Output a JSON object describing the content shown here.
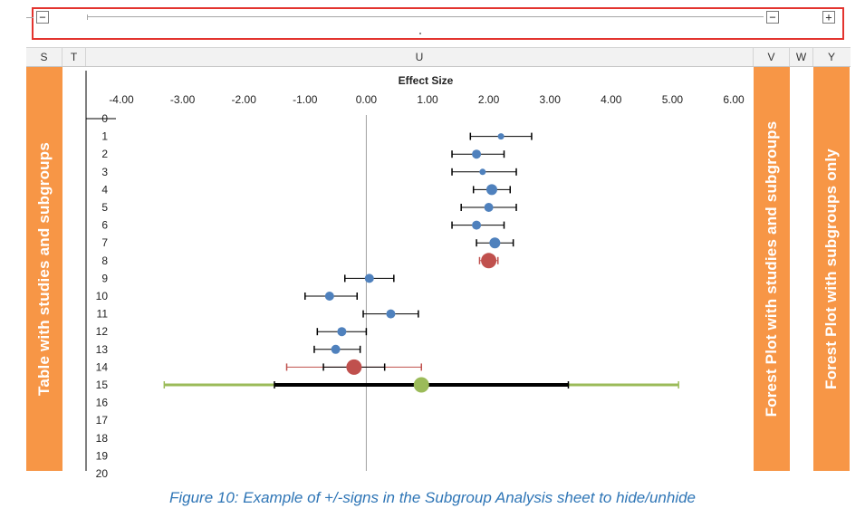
{
  "group_bar": {
    "collapse_left_label": "−",
    "collapse_right_label": "−",
    "expand_label": "+"
  },
  "column_headers": [
    "S",
    "T",
    "U",
    "V",
    "W",
    "Y"
  ],
  "left_panel_label": "Table with studies and subgroups",
  "middle_panel_label": "Forest Plot with studies and subgroups",
  "right_panel_label": "Forest Plot with subgroups only",
  "chart_data": {
    "type": "scatter",
    "title": "Effect Size",
    "x_ticks": [
      "-4.00",
      "-3.00",
      "-2.00",
      "-1.00",
      "0.00",
      "1.00",
      "2.00",
      "3.00",
      "4.00",
      "5.00",
      "6.00"
    ],
    "xlim": [
      -4,
      6
    ],
    "ylim": [
      0,
      20
    ],
    "row_labels": [
      "0",
      "1",
      "2",
      "3",
      "4",
      "5",
      "6",
      "7",
      "8",
      "9",
      "10",
      "11",
      "12",
      "13",
      "14",
      "15",
      "16",
      "17",
      "18",
      "19",
      "20"
    ],
    "reference_line_x": 0,
    "colors": {
      "study": "#4f81bd",
      "subgroup": "#c0504d",
      "overall": "#9bbb59",
      "whisker": "#000000",
      "subgroup_whisker": "#c0504d",
      "overall_outer": "#9bbb59"
    },
    "studies": [
      {
        "row": 1,
        "x": 2.2,
        "lo": 1.7,
        "hi": 2.7,
        "size": "small"
      },
      {
        "row": 2,
        "x": 1.8,
        "lo": 1.4,
        "hi": 2.25,
        "size": "medium"
      },
      {
        "row": 3,
        "x": 1.9,
        "lo": 1.4,
        "hi": 2.45,
        "size": "small"
      },
      {
        "row": 4,
        "x": 2.05,
        "lo": 1.75,
        "hi": 2.35,
        "size": "large"
      },
      {
        "row": 5,
        "x": 2.0,
        "lo": 1.55,
        "hi": 2.45,
        "size": "medium"
      },
      {
        "row": 6,
        "x": 1.8,
        "lo": 1.4,
        "hi": 2.25,
        "size": "medium"
      },
      {
        "row": 7,
        "x": 2.1,
        "lo": 1.8,
        "hi": 2.4,
        "size": "large"
      },
      {
        "row": 9,
        "x": 0.05,
        "lo": -0.35,
        "hi": 0.45,
        "size": "medium"
      },
      {
        "row": 10,
        "x": -0.6,
        "lo": -1.0,
        "hi": -0.15,
        "size": "medium"
      },
      {
        "row": 11,
        "x": 0.4,
        "lo": -0.05,
        "hi": 0.85,
        "size": "medium"
      },
      {
        "row": 12,
        "x": -0.4,
        "lo": -0.8,
        "hi": 0.0,
        "size": "medium"
      },
      {
        "row": 13,
        "x": -0.5,
        "lo": -0.85,
        "hi": -0.1,
        "size": "medium"
      }
    ],
    "subgroups": [
      {
        "row": 8,
        "x": 2.0,
        "lo": 1.85,
        "hi": 2.15
      },
      {
        "row": 14,
        "x": -0.2,
        "lo": -1.3,
        "hi": 0.9,
        "inner_lo": -0.7,
        "inner_hi": 0.3
      }
    ],
    "overall": {
      "row": 15,
      "x": 0.9,
      "lo": -1.5,
      "hi": 3.3,
      "pred_lo": -3.3,
      "pred_hi": 5.1
    }
  },
  "caption": "Figure 10: Example of +/-signs in the Subgroup Analysis sheet to hide/unhide"
}
